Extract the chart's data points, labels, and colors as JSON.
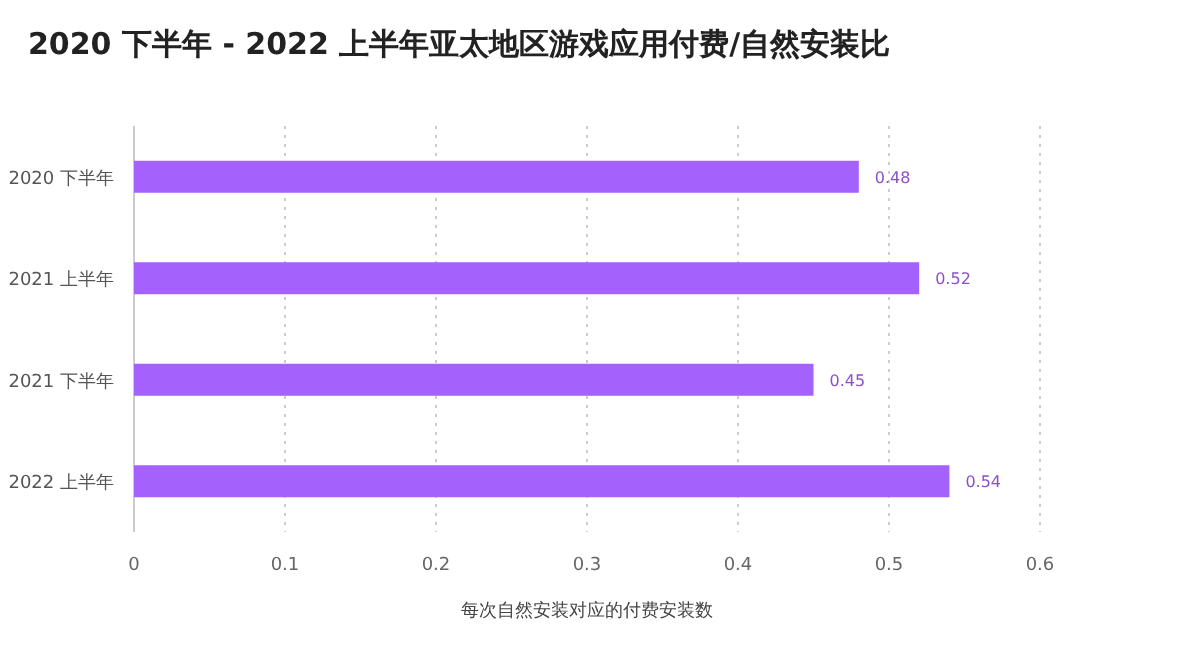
{
  "chart_data": {
    "type": "bar",
    "orientation": "horizontal",
    "title": "2020 下半年 - 2022 上半年亚太地区游戏应用付费/自然安装比",
    "xlabel": "每次自然安装对应的付费安装数",
    "categories": [
      "2020 下半年",
      "2021 上半年",
      "2021 下半年",
      "2022 上半年"
    ],
    "values": [
      0.48,
      0.52,
      0.45,
      0.54
    ],
    "color": "#a461fb",
    "data_labels": true,
    "xlim": [
      0,
      0.6
    ],
    "xticks": [
      0,
      0.1,
      0.2,
      0.3,
      0.4,
      0.5,
      0.6
    ],
    "grid": "x"
  }
}
